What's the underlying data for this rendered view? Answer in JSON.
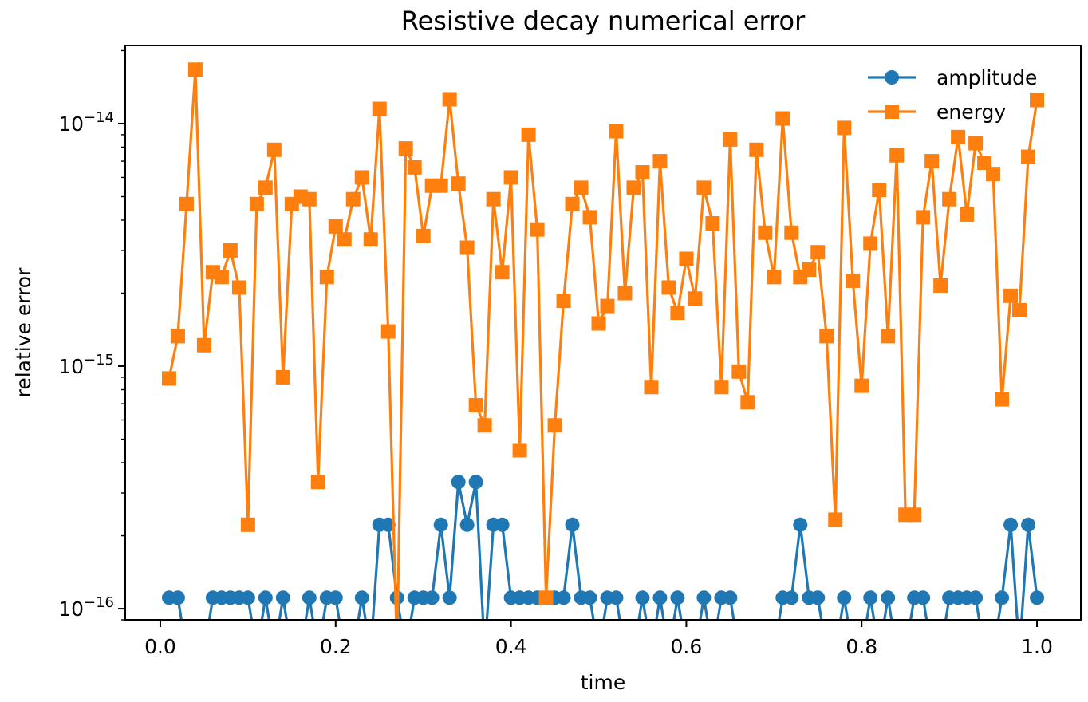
{
  "chart_data": {
    "type": "line",
    "title": "Resistive decay numerical error",
    "xlabel": "time",
    "ylabel": "relative error",
    "xlim": [
      -0.04,
      1.05
    ],
    "ylim": [
      9e-17,
      2.1e-14
    ],
    "yscale": "log",
    "grid": false,
    "legend_position": "top-right",
    "x_ticks": [
      {
        "value": 0.0,
        "label": "0.0"
      },
      {
        "value": 0.2,
        "label": "0.2"
      },
      {
        "value": 0.4,
        "label": "0.4"
      },
      {
        "value": 0.6,
        "label": "0.6"
      },
      {
        "value": 0.8,
        "label": "0.8"
      },
      {
        "value": 1.0,
        "label": "1.0"
      }
    ],
    "y_ticks": [
      {
        "value": 1e-16,
        "base": "10",
        "exp": "−16"
      },
      {
        "value": 1e-15,
        "base": "10",
        "exp": "−15"
      },
      {
        "value": 1e-14,
        "base": "10",
        "exp": "−14"
      }
    ],
    "x": [
      0.01,
      0.02,
      0.03,
      0.04,
      0.05,
      0.06,
      0.07,
      0.08,
      0.09,
      0.1,
      0.11,
      0.12,
      0.13,
      0.14,
      0.15,
      0.16,
      0.17,
      0.18,
      0.19,
      0.2,
      0.21,
      0.22,
      0.23,
      0.24,
      0.25,
      0.26,
      0.27,
      0.28,
      0.29,
      0.3,
      0.31,
      0.32,
      0.33,
      0.34,
      0.35,
      0.36,
      0.37,
      0.38,
      0.39,
      0.4,
      0.41,
      0.42,
      0.43,
      0.44,
      0.45,
      0.46,
      0.47,
      0.48,
      0.49,
      0.5,
      0.51,
      0.52,
      0.53,
      0.54,
      0.55,
      0.56,
      0.57,
      0.58,
      0.59,
      0.6,
      0.61,
      0.62,
      0.63,
      0.64,
      0.65,
      0.66,
      0.67,
      0.68,
      0.69,
      0.7,
      0.71,
      0.72,
      0.73,
      0.74,
      0.75,
      0.76,
      0.77,
      0.78,
      0.79,
      0.8,
      0.81,
      0.82,
      0.83,
      0.84,
      0.85,
      0.86,
      0.87,
      0.88,
      0.89,
      0.9,
      0.91,
      0.92,
      0.93,
      0.94,
      0.95,
      0.96,
      0.97,
      0.98,
      0.99,
      1.0
    ],
    "series": [
      {
        "name": "amplitude",
        "color": "#1f77b4",
        "marker": "circle",
        "values": [
          1.11e-16,
          1.11e-16,
          0,
          0,
          0,
          1.11e-16,
          1.11e-16,
          1.11e-16,
          1.11e-16,
          1.11e-16,
          0,
          1.11e-16,
          0,
          1.11e-16,
          0,
          0,
          1.11e-16,
          0,
          1.11e-16,
          1.11e-16,
          0,
          0,
          1.11e-16,
          0,
          2.22e-16,
          2.22e-16,
          1.11e-16,
          0,
          1.11e-16,
          1.11e-16,
          1.11e-16,
          2.22e-16,
          1.11e-16,
          3.33e-16,
          2.22e-16,
          3.33e-16,
          0,
          2.22e-16,
          2.22e-16,
          1.11e-16,
          1.11e-16,
          1.11e-16,
          1.11e-16,
          1.11e-16,
          1.11e-16,
          1.11e-16,
          2.22e-16,
          1.11e-16,
          1.11e-16,
          0,
          1.11e-16,
          1.11e-16,
          0,
          0,
          1.11e-16,
          0,
          1.11e-16,
          0,
          1.11e-16,
          0,
          0,
          1.11e-16,
          0,
          1.11e-16,
          1.11e-16,
          0,
          0,
          0,
          0,
          0,
          1.11e-16,
          1.11e-16,
          2.22e-16,
          1.11e-16,
          1.11e-16,
          0,
          0,
          1.11e-16,
          0,
          0,
          1.11e-16,
          0,
          1.11e-16,
          0,
          0,
          1.11e-16,
          1.11e-16,
          0,
          0,
          1.11e-16,
          1.11e-16,
          1.11e-16,
          1.11e-16,
          0,
          0,
          1.11e-16,
          2.22e-16,
          0,
          2.22e-16,
          1.11e-16
        ]
      },
      {
        "name": "energy",
        "color": "#ff7f0e",
        "marker": "square",
        "values": [
          8.9e-16,
          1.33e-15,
          4.66e-15,
          1.67e-14,
          1.22e-15,
          2.44e-15,
          2.33e-15,
          3e-15,
          2.11e-15,
          2.22e-16,
          4.66e-15,
          5.44e-15,
          7.8e-15,
          9e-16,
          4.66e-15,
          5e-15,
          4.88e-15,
          3.33e-16,
          2.33e-15,
          3.77e-15,
          3.33e-15,
          4.88e-15,
          6e-15,
          3.33e-15,
          1.15e-14,
          1.39e-15,
          0,
          7.9e-15,
          6.6e-15,
          3.44e-15,
          5.55e-15,
          5.55e-15,
          1.26e-14,
          5.66e-15,
          3.08e-15,
          6.9e-16,
          5.7e-16,
          4.88e-15,
          2.44e-15,
          6e-15,
          4.5e-16,
          9e-15,
          3.66e-15,
          1.11e-16,
          5.7e-16,
          1.86e-15,
          4.66e-15,
          5.44e-15,
          4.11e-15,
          1.5e-15,
          1.77e-15,
          9.3e-15,
          2e-15,
          5.44e-15,
          6.3e-15,
          8.2e-16,
          7e-15,
          2.11e-15,
          1.66e-15,
          2.77e-15,
          1.9e-15,
          5.44e-15,
          3.88e-15,
          8.2e-16,
          8.6e-15,
          9.5e-16,
          7.1e-16,
          7.8e-15,
          3.55e-15,
          2.33e-15,
          1.05e-14,
          3.55e-15,
          2.33e-15,
          2.5e-15,
          2.95e-15,
          1.33e-15,
          2.33e-16,
          9.6e-15,
          2.25e-15,
          8.3e-16,
          3.2e-15,
          5.33e-15,
          1.33e-15,
          7.4e-15,
          2.44e-16,
          2.44e-16,
          4.11e-15,
          7e-15,
          2.15e-15,
          4.88e-15,
          8.8e-15,
          4.22e-15,
          8.3e-15,
          6.9e-15,
          6.2e-15,
          7.3e-16,
          1.95e-15,
          1.7e-15,
          7.3e-15,
          1.25e-14
        ]
      }
    ]
  }
}
